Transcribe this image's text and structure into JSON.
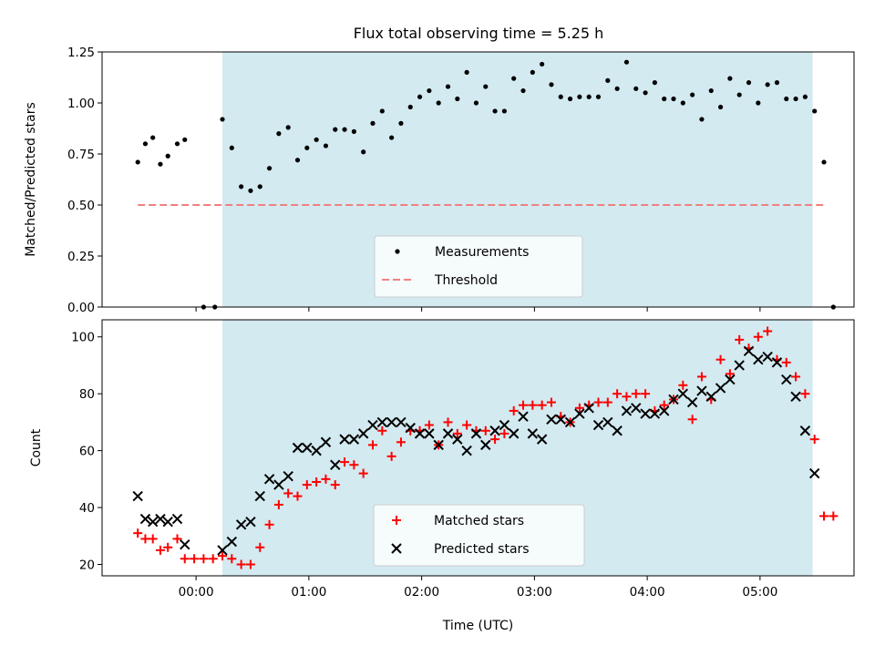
{
  "chart_data": [
    {
      "type": "scatter",
      "title": "Flux total observing time = 5.25 h",
      "xlabel": "",
      "ylabel": "Matched/Predicted stars",
      "xlim": [
        "-00:50",
        "05:50"
      ],
      "ylim": [
        0,
        1.25
      ],
      "yticks": [
        "0.00",
        "0.25",
        "0.50",
        "0.75",
        "1.00",
        "1.25"
      ],
      "legend": "lower-center",
      "shaded_span": [
        "00:14",
        "05:28"
      ],
      "shade_color": "#d3eaf1",
      "series": [
        {
          "name": "Measurements",
          "marker": "dot",
          "color": "#000000",
          "points": [
            [
              "-00:31",
              0.71
            ],
            [
              "-00:27",
              0.8
            ],
            [
              "-00:23",
              0.83
            ],
            [
              "-00:19",
              0.7
            ],
            [
              "-00:15",
              0.74
            ],
            [
              "-00:10",
              0.8
            ],
            [
              "-00:06",
              0.82
            ],
            [
              "00:04",
              0.0
            ],
            [
              "00:10",
              0.0
            ],
            [
              "00:14",
              0.92
            ],
            [
              "00:19",
              0.78
            ],
            [
              "00:24",
              0.59
            ],
            [
              "00:29",
              0.57
            ],
            [
              "00:34",
              0.59
            ],
            [
              "00:39",
              0.68
            ],
            [
              "00:44",
              0.85
            ],
            [
              "00:49",
              0.88
            ],
            [
              "00:54",
              0.72
            ],
            [
              "00:59",
              0.78
            ],
            [
              "01:04",
              0.82
            ],
            [
              "01:09",
              0.79
            ],
            [
              "01:14",
              0.87
            ],
            [
              "01:19",
              0.87
            ],
            [
              "01:24",
              0.86
            ],
            [
              "01:29",
              0.76
            ],
            [
              "01:34",
              0.9
            ],
            [
              "01:39",
              0.96
            ],
            [
              "01:44",
              0.83
            ],
            [
              "01:49",
              0.9
            ],
            [
              "01:54",
              0.98
            ],
            [
              "01:59",
              1.03
            ],
            [
              "02:04",
              1.06
            ],
            [
              "02:09",
              1.0
            ],
            [
              "02:14",
              1.08
            ],
            [
              "02:19",
              1.02
            ],
            [
              "02:24",
              1.15
            ],
            [
              "02:29",
              1.0
            ],
            [
              "02:34",
              1.08
            ],
            [
              "02:39",
              0.96
            ],
            [
              "02:44",
              0.96
            ],
            [
              "02:49",
              1.12
            ],
            [
              "02:54",
              1.06
            ],
            [
              "02:59",
              1.15
            ],
            [
              "03:04",
              1.19
            ],
            [
              "03:09",
              1.09
            ],
            [
              "03:14",
              1.03
            ],
            [
              "03:19",
              1.02
            ],
            [
              "03:24",
              1.03
            ],
            [
              "03:29",
              1.03
            ],
            [
              "03:34",
              1.03
            ],
            [
              "03:39",
              1.11
            ],
            [
              "03:44",
              1.07
            ],
            [
              "03:49",
              1.2
            ],
            [
              "03:54",
              1.07
            ],
            [
              "03:59",
              1.05
            ],
            [
              "04:04",
              1.1
            ],
            [
              "04:09",
              1.02
            ],
            [
              "04:14",
              1.02
            ],
            [
              "04:19",
              1.0
            ],
            [
              "04:24",
              1.04
            ],
            [
              "04:29",
              0.92
            ],
            [
              "04:34",
              1.06
            ],
            [
              "04:39",
              0.98
            ],
            [
              "04:44",
              1.12
            ],
            [
              "04:49",
              1.04
            ],
            [
              "04:54",
              1.1
            ],
            [
              "04:59",
              1.0
            ],
            [
              "05:04",
              1.09
            ],
            [
              "05:09",
              1.1
            ],
            [
              "05:14",
              1.02
            ],
            [
              "05:19",
              1.02
            ],
            [
              "05:24",
              1.03
            ],
            [
              "05:29",
              0.96
            ],
            [
              "05:34",
              0.71
            ],
            [
              "05:39",
              0.0
            ]
          ]
        },
        {
          "name": "Threshold",
          "marker": "dashed-line",
          "color": "#f08080",
          "points": [
            [
              "-00:31",
              0.5
            ],
            [
              "05:34",
              0.5
            ]
          ]
        }
      ]
    },
    {
      "type": "scatter",
      "title": "",
      "xlabel": "Time (UTC)",
      "ylabel": "Count",
      "xlim": [
        "-00:50",
        "05:50"
      ],
      "ylim": [
        16,
        106
      ],
      "yticks": [
        "20",
        "40",
        "60",
        "80",
        "100"
      ],
      "xticks": [
        "00:00",
        "01:00",
        "02:00",
        "03:00",
        "04:00",
        "05:00"
      ],
      "legend": "lower-center",
      "shaded_span": [
        "00:14",
        "05:28"
      ],
      "shade_color": "#d3eaf1",
      "series": [
        {
          "name": "Matched stars",
          "marker": "plus",
          "color": "#ff0000",
          "points": [
            [
              "-00:31",
              31
            ],
            [
              "-00:27",
              29
            ],
            [
              "-00:23",
              29
            ],
            [
              "-00:19",
              25
            ],
            [
              "-00:15",
              26
            ],
            [
              "-00:10",
              29
            ],
            [
              "-00:06",
              22
            ],
            [
              "-00:01",
              22
            ],
            [
              "00:04",
              22
            ],
            [
              "00:09",
              22
            ],
            [
              "00:14",
              23
            ],
            [
              "00:19",
              22
            ],
            [
              "00:24",
              20
            ],
            [
              "00:29",
              20
            ],
            [
              "00:34",
              26
            ],
            [
              "00:39",
              34
            ],
            [
              "00:44",
              41
            ],
            [
              "00:49",
              45
            ],
            [
              "00:54",
              44
            ],
            [
              "00:59",
              48
            ],
            [
              "01:04",
              49
            ],
            [
              "01:09",
              50
            ],
            [
              "01:14",
              48
            ],
            [
              "01:19",
              56
            ],
            [
              "01:24",
              55
            ],
            [
              "01:29",
              52
            ],
            [
              "01:34",
              62
            ],
            [
              "01:39",
              67
            ],
            [
              "01:44",
              58
            ],
            [
              "01:49",
              63
            ],
            [
              "01:54",
              67
            ],
            [
              "01:59",
              67
            ],
            [
              "02:04",
              69
            ],
            [
              "02:09",
              62
            ],
            [
              "02:14",
              70
            ],
            [
              "02:19",
              66
            ],
            [
              "02:24",
              69
            ],
            [
              "02:29",
              67
            ],
            [
              "02:34",
              67
            ],
            [
              "02:39",
              64
            ],
            [
              "02:44",
              66
            ],
            [
              "02:49",
              74
            ],
            [
              "02:54",
              76
            ],
            [
              "02:59",
              76
            ],
            [
              "03:04",
              76
            ],
            [
              "03:09",
              77
            ],
            [
              "03:14",
              72
            ],
            [
              "03:19",
              70
            ],
            [
              "03:24",
              75
            ],
            [
              "03:29",
              76
            ],
            [
              "03:34",
              77
            ],
            [
              "03:39",
              77
            ],
            [
              "03:44",
              80
            ],
            [
              "03:49",
              79
            ],
            [
              "03:54",
              80
            ],
            [
              "03:59",
              80
            ],
            [
              "04:04",
              74
            ],
            [
              "04:09",
              76
            ],
            [
              "04:14",
              78
            ],
            [
              "04:19",
              83
            ],
            [
              "04:24",
              71
            ],
            [
              "04:29",
              86
            ],
            [
              "04:34",
              78
            ],
            [
              "04:39",
              92
            ],
            [
              "04:44",
              87
            ],
            [
              "04:49",
              99
            ],
            [
              "04:54",
              96
            ],
            [
              "04:59",
              100
            ],
            [
              "05:04",
              102
            ],
            [
              "05:09",
              92
            ],
            [
              "05:14",
              91
            ],
            [
              "05:19",
              86
            ],
            [
              "05:24",
              80
            ],
            [
              "05:29",
              64
            ],
            [
              "05:34",
              37
            ],
            [
              "05:39",
              37
            ]
          ]
        },
        {
          "name": "Predicted stars",
          "marker": "x",
          "color": "#000000",
          "points": [
            [
              "-00:31",
              44
            ],
            [
              "-00:27",
              36
            ],
            [
              "-00:23",
              35
            ],
            [
              "-00:19",
              36
            ],
            [
              "-00:15",
              35
            ],
            [
              "-00:10",
              36
            ],
            [
              "-00:06",
              27
            ],
            [
              "00:14",
              25
            ],
            [
              "00:19",
              28
            ],
            [
              "00:24",
              34
            ],
            [
              "00:29",
              35
            ],
            [
              "00:34",
              44
            ],
            [
              "00:39",
              50
            ],
            [
              "00:44",
              48
            ],
            [
              "00:49",
              51
            ],
            [
              "00:54",
              61
            ],
            [
              "00:59",
              61
            ],
            [
              "01:04",
              60
            ],
            [
              "01:09",
              63
            ],
            [
              "01:14",
              55
            ],
            [
              "01:19",
              64
            ],
            [
              "01:24",
              64
            ],
            [
              "01:29",
              66
            ],
            [
              "01:34",
              69
            ],
            [
              "01:39",
              70
            ],
            [
              "01:44",
              70
            ],
            [
              "01:49",
              70
            ],
            [
              "01:54",
              68
            ],
            [
              "01:59",
              66
            ],
            [
              "02:04",
              66
            ],
            [
              "02:09",
              62
            ],
            [
              "02:14",
              66
            ],
            [
              "02:19",
              64
            ],
            [
              "02:24",
              60
            ],
            [
              "02:29",
              66
            ],
            [
              "02:34",
              62
            ],
            [
              "02:39",
              67
            ],
            [
              "02:44",
              69
            ],
            [
              "02:49",
              66
            ],
            [
              "02:54",
              72
            ],
            [
              "02:59",
              66
            ],
            [
              "03:04",
              64
            ],
            [
              "03:09",
              71
            ],
            [
              "03:14",
              71
            ],
            [
              "03:19",
              70
            ],
            [
              "03:24",
              73
            ],
            [
              "03:29",
              75
            ],
            [
              "03:34",
              69
            ],
            [
              "03:39",
              70
            ],
            [
              "03:44",
              67
            ],
            [
              "03:49",
              74
            ],
            [
              "03:54",
              75
            ],
            [
              "03:59",
              73
            ],
            [
              "04:04",
              73
            ],
            [
              "04:09",
              74
            ],
            [
              "04:14",
              78
            ],
            [
              "04:19",
              80
            ],
            [
              "04:24",
              77
            ],
            [
              "04:29",
              81
            ],
            [
              "04:34",
              79
            ],
            [
              "04:39",
              82
            ],
            [
              "04:44",
              85
            ],
            [
              "04:49",
              90
            ],
            [
              "04:54",
              95
            ],
            [
              "04:59",
              92
            ],
            [
              "05:04",
              93
            ],
            [
              "05:09",
              91
            ],
            [
              "05:14",
              85
            ],
            [
              "05:19",
              79
            ],
            [
              "05:24",
              67
            ],
            [
              "05:29",
              52
            ]
          ]
        }
      ]
    }
  ]
}
